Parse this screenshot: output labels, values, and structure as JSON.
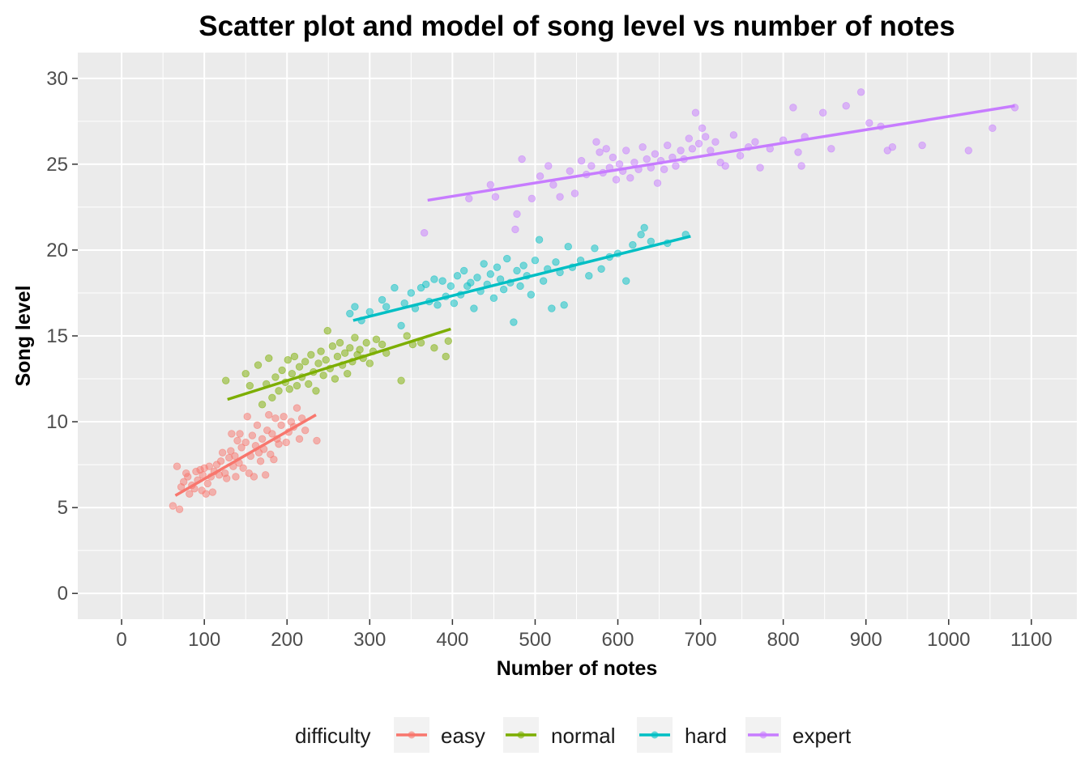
{
  "chart_data": {
    "type": "scatter",
    "title": "Scatter plot and model of song level vs number of notes",
    "xlabel": "Number of notes",
    "ylabel": "Song level",
    "xlim": [
      -53,
      1155
    ],
    "ylim": [
      -1.5,
      31.5
    ],
    "x_ticks": [
      "0",
      "100",
      "200",
      "300",
      "400",
      "500",
      "600",
      "700",
      "800",
      "900",
      "1000",
      "1100"
    ],
    "y_ticks": [
      "0",
      "5",
      "10",
      "15",
      "20",
      "25",
      "30"
    ],
    "grid": true,
    "legend": {
      "title": "difficulty",
      "position": "bottom",
      "items": [
        {
          "label": "easy",
          "color": "#F8766D"
        },
        {
          "label": "normal",
          "color": "#7CAE00"
        },
        {
          "label": "hard",
          "color": "#00BFC4"
        },
        {
          "label": "expert",
          "color": "#C77CFF"
        }
      ]
    },
    "series": [
      {
        "name": "easy",
        "color": "#F8766D",
        "fit": {
          "x": [
            65,
            235
          ],
          "y": [
            5.7,
            10.4
          ]
        },
        "points": [
          [
            62,
            5.1
          ],
          [
            67,
            7.4
          ],
          [
            70,
            4.9
          ],
          [
            72,
            6.2
          ],
          [
            75,
            6.5
          ],
          [
            78,
            7.0
          ],
          [
            80,
            6.8
          ],
          [
            82,
            5.8
          ],
          [
            85,
            6.3
          ],
          [
            88,
            6.1
          ],
          [
            90,
            7.1
          ],
          [
            92,
            6.6
          ],
          [
            95,
            7.2
          ],
          [
            97,
            6.0
          ],
          [
            98,
            6.9
          ],
          [
            100,
            7.3
          ],
          [
            102,
            5.8
          ],
          [
            104,
            6.4
          ],
          [
            106,
            7.4
          ],
          [
            108,
            6.8
          ],
          [
            110,
            5.9
          ],
          [
            112,
            7.1
          ],
          [
            115,
            7.5
          ],
          [
            118,
            6.9
          ],
          [
            120,
            7.7
          ],
          [
            122,
            8.2
          ],
          [
            125,
            7.0
          ],
          [
            127,
            6.7
          ],
          [
            130,
            7.9
          ],
          [
            132,
            8.3
          ],
          [
            133,
            9.3
          ],
          [
            135,
            7.4
          ],
          [
            137,
            8.0
          ],
          [
            138,
            6.8
          ],
          [
            140,
            8.9
          ],
          [
            142,
            7.6
          ],
          [
            143,
            9.3
          ],
          [
            145,
            8.5
          ],
          [
            147,
            7.3
          ],
          [
            150,
            8.8
          ],
          [
            152,
            10.3
          ],
          [
            154,
            7.0
          ],
          [
            156,
            8.0
          ],
          [
            158,
            9.2
          ],
          [
            160,
            6.8
          ],
          [
            162,
            8.6
          ],
          [
            164,
            9.8
          ],
          [
            166,
            8.2
          ],
          [
            168,
            7.7
          ],
          [
            170,
            9.0
          ],
          [
            172,
            8.4
          ],
          [
            174,
            6.9
          ],
          [
            176,
            9.5
          ],
          [
            178,
            10.4
          ],
          [
            180,
            8.1
          ],
          [
            182,
            9.3
          ],
          [
            184,
            7.8
          ],
          [
            186,
            10.2
          ],
          [
            188,
            9.0
          ],
          [
            190,
            8.7
          ],
          [
            193,
            9.8
          ],
          [
            196,
            10.3
          ],
          [
            199,
            8.8
          ],
          [
            202,
            9.4
          ],
          [
            205,
            10.0
          ],
          [
            208,
            9.7
          ],
          [
            212,
            10.8
          ],
          [
            215,
            9.0
          ],
          [
            218,
            10.2
          ],
          [
            222,
            9.5
          ],
          [
            236,
            8.9
          ]
        ]
      },
      {
        "name": "normal",
        "color": "#7CAE00",
        "fit": {
          "x": [
            128,
            398
          ],
          "y": [
            11.3,
            15.4
          ]
        },
        "points": [
          [
            126,
            12.4
          ],
          [
            150,
            12.8
          ],
          [
            155,
            12.1
          ],
          [
            165,
            13.3
          ],
          [
            170,
            11.0
          ],
          [
            175,
            12.2
          ],
          [
            178,
            13.7
          ],
          [
            182,
            11.4
          ],
          [
            186,
            12.6
          ],
          [
            190,
            11.8
          ],
          [
            194,
            13.0
          ],
          [
            198,
            12.3
          ],
          [
            201,
            13.6
          ],
          [
            203,
            11.9
          ],
          [
            206,
            12.8
          ],
          [
            209,
            13.8
          ],
          [
            212,
            12.1
          ],
          [
            215,
            13.2
          ],
          [
            218,
            12.6
          ],
          [
            222,
            13.5
          ],
          [
            226,
            12.2
          ],
          [
            229,
            13.9
          ],
          [
            232,
            12.9
          ],
          [
            235,
            11.8
          ],
          [
            238,
            13.4
          ],
          [
            241,
            14.1
          ],
          [
            244,
            12.7
          ],
          [
            247,
            13.6
          ],
          [
            249,
            15.3
          ],
          [
            252,
            13.1
          ],
          [
            255,
            14.4
          ],
          [
            258,
            12.5
          ],
          [
            261,
            13.8
          ],
          [
            264,
            14.6
          ],
          [
            267,
            13.3
          ],
          [
            270,
            14.0
          ],
          [
            273,
            12.8
          ],
          [
            276,
            14.3
          ],
          [
            279,
            13.5
          ],
          [
            282,
            14.9
          ],
          [
            285,
            13.9
          ],
          [
            288,
            14.2
          ],
          [
            292,
            13.7
          ],
          [
            296,
            14.6
          ],
          [
            300,
            13.4
          ],
          [
            304,
            14.1
          ],
          [
            308,
            14.8
          ],
          [
            315,
            14.5
          ],
          [
            320,
            14.0
          ],
          [
            338,
            12.4
          ],
          [
            345,
            15.0
          ],
          [
            352,
            14.5
          ],
          [
            362,
            14.6
          ],
          [
            378,
            14.3
          ],
          [
            392,
            13.8
          ],
          [
            395,
            14.7
          ]
        ]
      },
      {
        "name": "hard",
        "color": "#00BFC4",
        "fit": {
          "x": [
            280,
            688
          ],
          "y": [
            15.9,
            20.8
          ]
        },
        "points": [
          [
            276,
            16.3
          ],
          [
            282,
            16.7
          ],
          [
            290,
            15.9
          ],
          [
            300,
            16.4
          ],
          [
            315,
            17.1
          ],
          [
            320,
            16.7
          ],
          [
            330,
            17.8
          ],
          [
            338,
            15.6
          ],
          [
            342,
            16.9
          ],
          [
            350,
            17.5
          ],
          [
            355,
            16.6
          ],
          [
            362,
            17.8
          ],
          [
            368,
            18.0
          ],
          [
            372,
            17.0
          ],
          [
            378,
            18.3
          ],
          [
            382,
            16.8
          ],
          [
            388,
            18.2
          ],
          [
            392,
            17.3
          ],
          [
            398,
            17.9
          ],
          [
            402,
            16.9
          ],
          [
            406,
            18.5
          ],
          [
            410,
            17.4
          ],
          [
            414,
            18.8
          ],
          [
            418,
            17.9
          ],
          [
            422,
            18.1
          ],
          [
            426,
            16.6
          ],
          [
            430,
            18.4
          ],
          [
            434,
            17.6
          ],
          [
            438,
            19.2
          ],
          [
            442,
            18.0
          ],
          [
            446,
            18.6
          ],
          [
            450,
            17.2
          ],
          [
            454,
            19.0
          ],
          [
            458,
            18.3
          ],
          [
            462,
            17.7
          ],
          [
            466,
            19.5
          ],
          [
            470,
            18.1
          ],
          [
            474,
            15.8
          ],
          [
            478,
            18.8
          ],
          [
            482,
            17.9
          ],
          [
            486,
            19.1
          ],
          [
            490,
            18.5
          ],
          [
            495,
            17.4
          ],
          [
            500,
            19.4
          ],
          [
            505,
            20.6
          ],
          [
            510,
            18.2
          ],
          [
            515,
            18.9
          ],
          [
            520,
            16.6
          ],
          [
            525,
            19.3
          ],
          [
            530,
            18.7
          ],
          [
            535,
            16.8
          ],
          [
            540,
            20.2
          ],
          [
            545,
            19.0
          ],
          [
            555,
            19.4
          ],
          [
            565,
            18.5
          ],
          [
            572,
            20.1
          ],
          [
            580,
            18.9
          ],
          [
            590,
            19.6
          ],
          [
            600,
            19.8
          ],
          [
            610,
            18.2
          ],
          [
            618,
            20.3
          ],
          [
            628,
            20.9
          ],
          [
            632,
            21.3
          ],
          [
            640,
            20.5
          ],
          [
            660,
            20.4
          ],
          [
            682,
            20.9
          ]
        ]
      },
      {
        "name": "expert",
        "color": "#C77CFF",
        "fit": {
          "x": [
            370,
            1080
          ],
          "y": [
            22.9,
            28.4
          ]
        },
        "points": [
          [
            366,
            21.0
          ],
          [
            420,
            23.0
          ],
          [
            446,
            23.8
          ],
          [
            452,
            23.1
          ],
          [
            476,
            21.2
          ],
          [
            478,
            22.1
          ],
          [
            484,
            25.3
          ],
          [
            496,
            23.0
          ],
          [
            506,
            24.3
          ],
          [
            516,
            24.9
          ],
          [
            522,
            23.8
          ],
          [
            530,
            23.1
          ],
          [
            542,
            24.6
          ],
          [
            548,
            23.3
          ],
          [
            556,
            25.2
          ],
          [
            562,
            24.4
          ],
          [
            568,
            24.9
          ],
          [
            574,
            26.3
          ],
          [
            578,
            25.7
          ],
          [
            582,
            24.5
          ],
          [
            586,
            25.9
          ],
          [
            590,
            24.8
          ],
          [
            594,
            25.4
          ],
          [
            598,
            24.1
          ],
          [
            602,
            25.0
          ],
          [
            606,
            24.6
          ],
          [
            610,
            25.8
          ],
          [
            615,
            24.2
          ],
          [
            620,
            25.1
          ],
          [
            625,
            24.7
          ],
          [
            630,
            26.0
          ],
          [
            635,
            25.3
          ],
          [
            640,
            24.8
          ],
          [
            645,
            25.6
          ],
          [
            648,
            23.9
          ],
          [
            652,
            25.2
          ],
          [
            656,
            24.7
          ],
          [
            660,
            26.1
          ],
          [
            666,
            25.4
          ],
          [
            670,
            24.9
          ],
          [
            676,
            25.8
          ],
          [
            680,
            25.3
          ],
          [
            686,
            26.5
          ],
          [
            690,
            25.9
          ],
          [
            694,
            28.0
          ],
          [
            698,
            26.2
          ],
          [
            702,
            27.1
          ],
          [
            706,
            26.6
          ],
          [
            712,
            25.8
          ],
          [
            718,
            26.3
          ],
          [
            724,
            25.1
          ],
          [
            730,
            24.9
          ],
          [
            740,
            26.7
          ],
          [
            748,
            25.5
          ],
          [
            758,
            26.0
          ],
          [
            766,
            26.3
          ],
          [
            772,
            24.8
          ],
          [
            784,
            25.9
          ],
          [
            800,
            26.4
          ],
          [
            812,
            28.3
          ],
          [
            818,
            25.7
          ],
          [
            822,
            24.9
          ],
          [
            826,
            26.6
          ],
          [
            848,
            28.0
          ],
          [
            858,
            25.9
          ],
          [
            876,
            28.4
          ],
          [
            894,
            29.2
          ],
          [
            904,
            27.4
          ],
          [
            918,
            27.2
          ],
          [
            926,
            25.8
          ],
          [
            932,
            26.0
          ],
          [
            968,
            26.1
          ],
          [
            1024,
            25.8
          ],
          [
            1053,
            27.1
          ],
          [
            1080,
            28.3
          ]
        ]
      }
    ]
  }
}
